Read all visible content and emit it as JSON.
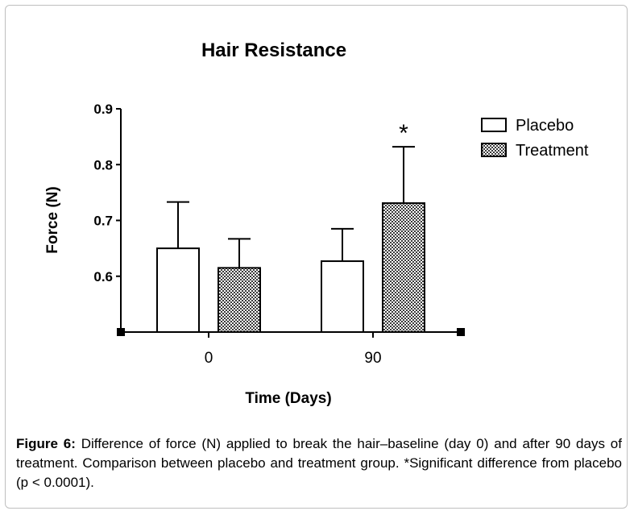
{
  "chart_data": {
    "type": "bar",
    "title": "Hair Resistance",
    "xlabel": "Time (Days)",
    "ylabel": "Force (N)",
    "categories": [
      "0",
      "90"
    ],
    "ylim": [
      0.5,
      0.9
    ],
    "yticks": [
      0.6,
      0.7,
      0.8,
      0.9
    ],
    "series": [
      {
        "name": "Placebo",
        "values": [
          0.65,
          0.627
        ],
        "errors": [
          0.083,
          0.058
        ],
        "fill": "white"
      },
      {
        "name": "Treatment",
        "values": [
          0.615,
          0.731
        ],
        "errors": [
          0.052,
          0.101
        ],
        "fill": "crosshatch"
      }
    ],
    "annotations": [
      {
        "category": "90",
        "series": "Treatment",
        "text": "*"
      }
    ],
    "legend_position": "top-right",
    "grid": false
  },
  "caption": {
    "label": "Figure 6:",
    "text": " Difference of force (N) applied to break the hair–baseline (day 0) and after 90 days of treatment. Comparison between placebo and treatment group. *Significant difference from placebo (p < 0.0001)."
  },
  "colors": {
    "bar_stroke": "#000000",
    "hatch": "#444444",
    "frame_border": "#bfbfbf"
  }
}
